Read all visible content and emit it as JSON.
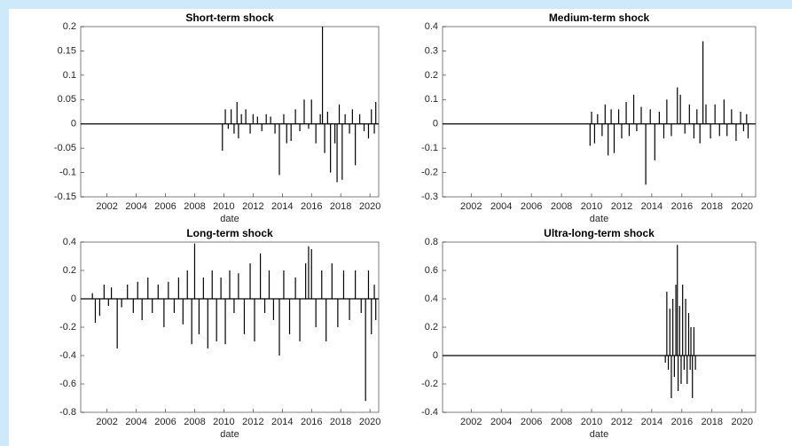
{
  "chart_data": [
    {
      "type": "stem",
      "title": "Short-term shock",
      "x_label": "date",
      "color": "#000000",
      "xlim": [
        2000.2,
        2020.6
      ],
      "ylim": [
        -0.15,
        0.2
      ],
      "xticks": [
        2002,
        2004,
        2006,
        2008,
        2010,
        2012,
        2014,
        2016,
        2018,
        2020
      ],
      "yticks": [
        -0.15,
        -0.1,
        -0.05,
        0,
        0.05,
        0.1,
        0.15,
        0.2
      ],
      "x": [
        2009.9,
        2010.1,
        2010.3,
        2010.5,
        2010.7,
        2010.9,
        2011.0,
        2011.2,
        2011.5,
        2011.8,
        2012.0,
        2012.3,
        2012.6,
        2012.9,
        2013.2,
        2013.5,
        2013.8,
        2014.1,
        2014.3,
        2014.6,
        2014.9,
        2015.2,
        2015.5,
        2015.8,
        2016.0,
        2016.3,
        2016.6,
        2016.75,
        2016.9,
        2017.1,
        2017.3,
        2017.6,
        2017.75,
        2017.9,
        2018.1,
        2018.3,
        2018.6,
        2018.8,
        2019.0,
        2019.3,
        2019.6,
        2019.9,
        2020.1,
        2020.3,
        2020.4
      ],
      "values": [
        -0.055,
        0.03,
        -0.01,
        0.03,
        -0.02,
        0.045,
        -0.03,
        0.02,
        0.03,
        -0.02,
        0.02,
        0.015,
        -0.015,
        0.02,
        0.015,
        -0.02,
        -0.105,
        0.02,
        -0.04,
        -0.035,
        0.03,
        -0.015,
        0.05,
        -0.01,
        0.05,
        -0.04,
        0.02,
        0.2,
        -0.06,
        0.025,
        -0.1,
        -0.04,
        -0.12,
        0.04,
        -0.115,
        0.02,
        -0.02,
        0.03,
        -0.085,
        0.02,
        -0.015,
        -0.03,
        0.03,
        -0.02,
        0.045
      ]
    },
    {
      "type": "stem",
      "title": "Medium-term shock",
      "x_label": "date",
      "color": "#000000",
      "xlim": [
        2000.1,
        2020.9
      ],
      "ylim": [
        -0.3,
        0.4
      ],
      "xticks": [
        2002,
        2004,
        2006,
        2008,
        2010,
        2012,
        2014,
        2016,
        2018,
        2020
      ],
      "yticks": [
        -0.3,
        -0.2,
        -0.1,
        0,
        0.1,
        0.2,
        0.3,
        0.4
      ],
      "x": [
        2009.9,
        2010.0,
        2010.2,
        2010.4,
        2010.7,
        2010.9,
        2011.1,
        2011.3,
        2011.5,
        2011.8,
        2012.0,
        2012.3,
        2012.5,
        2012.8,
        2013.0,
        2013.3,
        2013.6,
        2013.9,
        2014.2,
        2014.5,
        2014.8,
        2015.0,
        2015.3,
        2015.7,
        2015.9,
        2016.2,
        2016.5,
        2016.8,
        2017.0,
        2017.2,
        2017.4,
        2017.6,
        2017.9,
        2018.2,
        2018.5,
        2018.8,
        2019.0,
        2019.3,
        2019.6,
        2019.9,
        2020.1,
        2020.3,
        2020.4
      ],
      "values": [
        -0.09,
        0.05,
        -0.08,
        0.04,
        -0.05,
        0.08,
        -0.13,
        0.06,
        -0.12,
        0.06,
        -0.06,
        0.09,
        -0.05,
        0.12,
        -0.03,
        0.07,
        -0.25,
        0.06,
        -0.15,
        0.05,
        -0.06,
        0.1,
        -0.05,
        0.15,
        0.12,
        -0.04,
        0.08,
        -0.06,
        0.06,
        -0.08,
        0.34,
        0.08,
        -0.06,
        0.08,
        -0.05,
        0.1,
        -0.05,
        0.06,
        -0.07,
        0.05,
        -0.03,
        0.04,
        -0.06
      ]
    },
    {
      "type": "stem",
      "title": "Long-term shock",
      "x_label": "date",
      "color": "#000000",
      "xlim": [
        2000.2,
        2020.6
      ],
      "ylim": [
        -0.8,
        0.4
      ],
      "xticks": [
        2002,
        2004,
        2006,
        2008,
        2010,
        2012,
        2014,
        2016,
        2018,
        2020
      ],
      "yticks": [
        -0.8,
        -0.6,
        -0.4,
        -0.2,
        0,
        0.2,
        0.4
      ],
      "x": [
        2001.0,
        2001.2,
        2001.5,
        2001.8,
        2002.1,
        2002.3,
        2002.7,
        2003.0,
        2003.4,
        2003.8,
        2004.1,
        2004.4,
        2004.8,
        2005.1,
        2005.5,
        2005.9,
        2006.2,
        2006.6,
        2006.9,
        2007.2,
        2007.5,
        2007.8,
        2008.0,
        2008.3,
        2008.6,
        2008.9,
        2009.2,
        2009.5,
        2009.8,
        2010.1,
        2010.4,
        2010.7,
        2011.0,
        2011.4,
        2011.8,
        2012.1,
        2012.5,
        2012.8,
        2013.1,
        2013.4,
        2013.8,
        2014.1,
        2014.5,
        2014.9,
        2015.2,
        2015.6,
        2015.8,
        2016.0,
        2016.3,
        2016.7,
        2017.0,
        2017.4,
        2017.8,
        2018.2,
        2018.6,
        2019.0,
        2019.4,
        2019.7,
        2019.9,
        2020.1,
        2020.3,
        2020.4
      ],
      "values": [
        0.04,
        -0.17,
        -0.12,
        0.1,
        -0.05,
        0.08,
        -0.35,
        -0.06,
        0.1,
        -0.1,
        0.12,
        -0.15,
        0.15,
        -0.1,
        0.1,
        -0.2,
        0.12,
        -0.1,
        0.15,
        -0.18,
        0.2,
        -0.32,
        0.39,
        -0.25,
        0.15,
        -0.35,
        0.2,
        -0.3,
        0.15,
        -0.32,
        0.2,
        -0.1,
        0.18,
        -0.25,
        0.25,
        -0.3,
        0.32,
        -0.1,
        0.2,
        -0.15,
        -0.4,
        0.2,
        -0.25,
        0.15,
        -0.3,
        0.25,
        0.37,
        0.35,
        -0.2,
        0.2,
        -0.3,
        0.25,
        -0.2,
        0.2,
        -0.15,
        0.2,
        -0.1,
        -0.72,
        0.2,
        -0.25,
        0.1,
        -0.15
      ]
    },
    {
      "type": "stem",
      "title": "Ultra-long-term shock",
      "x_label": "date",
      "color": "#000000",
      "xlim": [
        2000.1,
        2020.9
      ],
      "ylim": [
        -0.4,
        0.8
      ],
      "xticks": [
        2002,
        2004,
        2006,
        2008,
        2010,
        2012,
        2014,
        2016,
        2018,
        2020
      ],
      "yticks": [
        -0.4,
        -0.2,
        0,
        0.2,
        0.4,
        0.6,
        0.8
      ],
      "x": [
        2014.9,
        2015.0,
        2015.1,
        2015.2,
        2015.3,
        2015.4,
        2015.5,
        2015.6,
        2015.7,
        2015.75,
        2015.85,
        2015.95,
        2016.05,
        2016.15,
        2016.25,
        2016.35,
        2016.45,
        2016.55,
        2016.6,
        2016.7,
        2016.8,
        2016.9
      ],
      "values": [
        -0.05,
        0.45,
        -0.1,
        0.33,
        -0.3,
        0.4,
        -0.15,
        0.5,
        0.78,
        -0.25,
        0.35,
        -0.2,
        0.5,
        -0.1,
        0.4,
        -0.2,
        0.3,
        -0.1,
        0.2,
        -0.3,
        0.2,
        -0.1
      ]
    }
  ]
}
